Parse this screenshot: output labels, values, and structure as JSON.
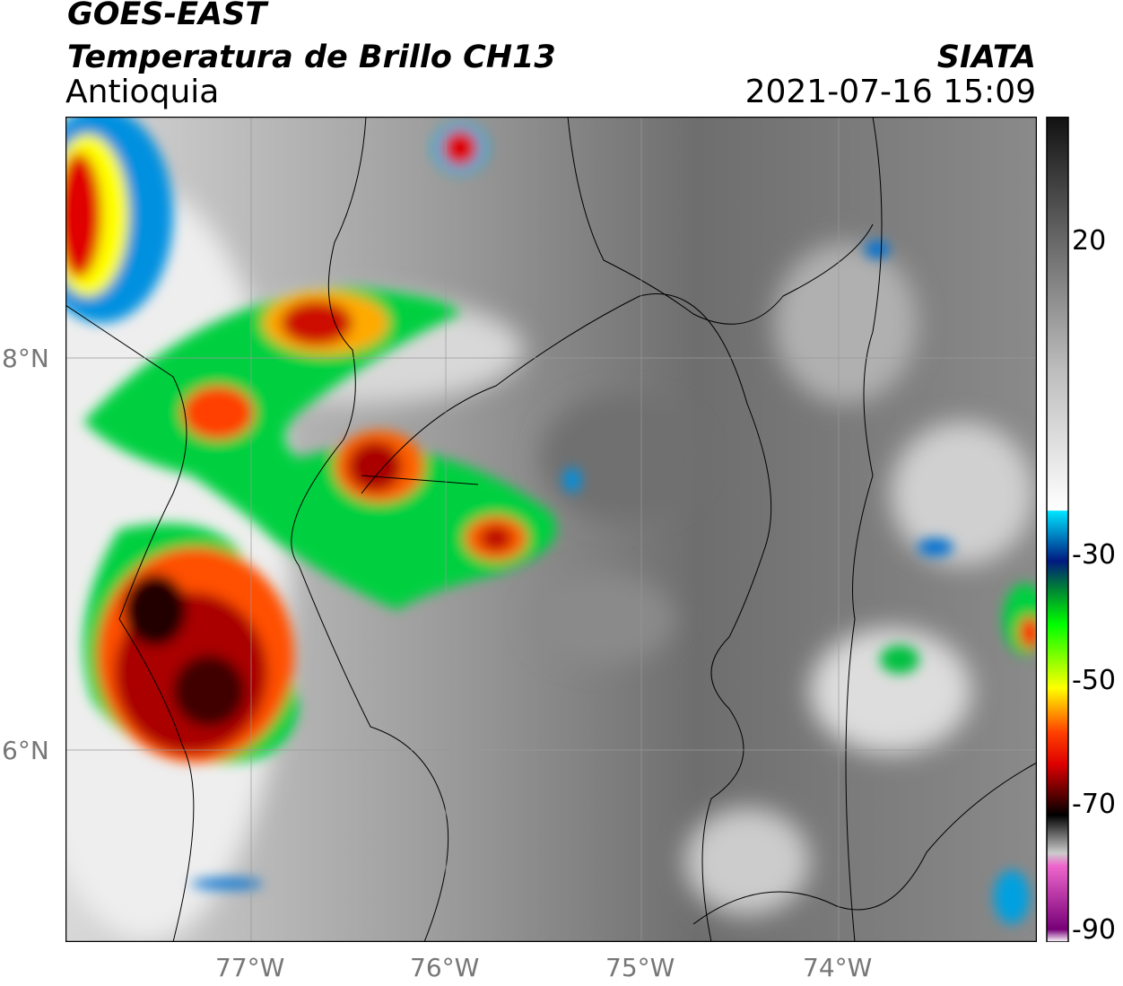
{
  "header": {
    "line1": "GOES-EAST",
    "line2": "Temperatura de Brillo CH13",
    "region": "Antioquia",
    "agency": "SIATA",
    "datetime": "2021-07-16 15:09"
  },
  "axes": {
    "x_ticks": [
      "77°W",
      "76°W",
      "75°W",
      "74°W"
    ],
    "y_ticks": [
      "8°N",
      "6°N"
    ],
    "lon_range": [
      -77.95,
      -72.95
    ],
    "lat_range": [
      5.0,
      9.2
    ]
  },
  "colorbar": {
    "ticks": [
      "20",
      "-30",
      "-50",
      "-70",
      "-90"
    ],
    "stops": [
      {
        "v": 40,
        "c": "#111111"
      },
      {
        "v": 20,
        "c": "#6a6a6a"
      },
      {
        "v": 0,
        "c": "#bdbdbd"
      },
      {
        "v": -22,
        "c": "#ffffff"
      },
      {
        "v": -22.1,
        "c": "#00e5ff"
      },
      {
        "v": -30,
        "c": "#001a80"
      },
      {
        "v": -34,
        "c": "#007a3a"
      },
      {
        "v": -40,
        "c": "#00ff00"
      },
      {
        "v": -50,
        "c": "#ffff00"
      },
      {
        "v": -57,
        "c": "#ff4000"
      },
      {
        "v": -62,
        "c": "#dd0000"
      },
      {
        "v": -68,
        "c": "#3a0000"
      },
      {
        "v": -70,
        "c": "#000000"
      },
      {
        "v": -76,
        "c": "#cccccc"
      },
      {
        "v": -78,
        "c": "#ee66cc"
      },
      {
        "v": -88,
        "c": "#770077"
      },
      {
        "v": -90,
        "c": "#ffffff"
      }
    ]
  }
}
